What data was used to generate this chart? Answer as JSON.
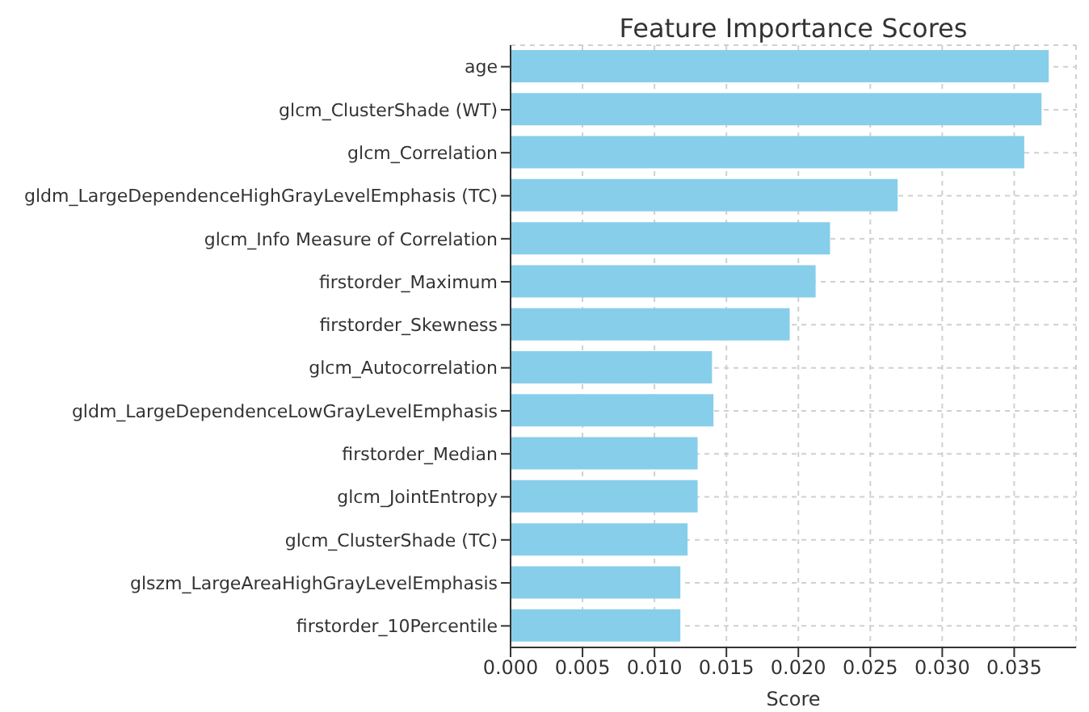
{
  "chart_data": {
    "type": "bar",
    "orientation": "horizontal",
    "title": "Feature Importance Scores",
    "xlabel": "Score",
    "categories": [
      "age",
      "glcm_ClusterShade (WT)",
      "glcm_Correlation",
      "gldm_LargeDependenceHighGrayLevelEmphasis (TC)",
      "glcm_Info Measure of Correlation",
      "firstorder_Maximum",
      "firstorder_Skewness",
      "glcm_Autocorrelation",
      "gldm_LargeDependenceLowGrayLevelEmphasis",
      "firstorder_Median",
      "glcm_JointEntropy",
      "glcm_ClusterShade (TC)",
      "glszm_LargeAreaHighGrayLevelEmphasis",
      "firstorder_10Percentile"
    ],
    "values": [
      0.0374,
      0.0369,
      0.0357,
      0.0269,
      0.0222,
      0.0212,
      0.0194,
      0.014,
      0.0141,
      0.013,
      0.013,
      0.0123,
      0.0118,
      0.0118
    ],
    "color": "#87ceeb",
    "xlim": [
      0,
      0.0393
    ],
    "xticks": [
      {
        "value": 0,
        "label": "0.000"
      },
      {
        "value": 0.005,
        "label": "0.005"
      },
      {
        "value": 0.01,
        "label": "0.010"
      },
      {
        "value": 0.015,
        "label": "0.015"
      },
      {
        "value": 0.02,
        "label": "0.020"
      },
      {
        "value": 0.025,
        "label": "0.025"
      },
      {
        "value": 0.03,
        "label": "0.030"
      },
      {
        "value": 0.035,
        "label": "0.035"
      }
    ],
    "grid": true
  }
}
